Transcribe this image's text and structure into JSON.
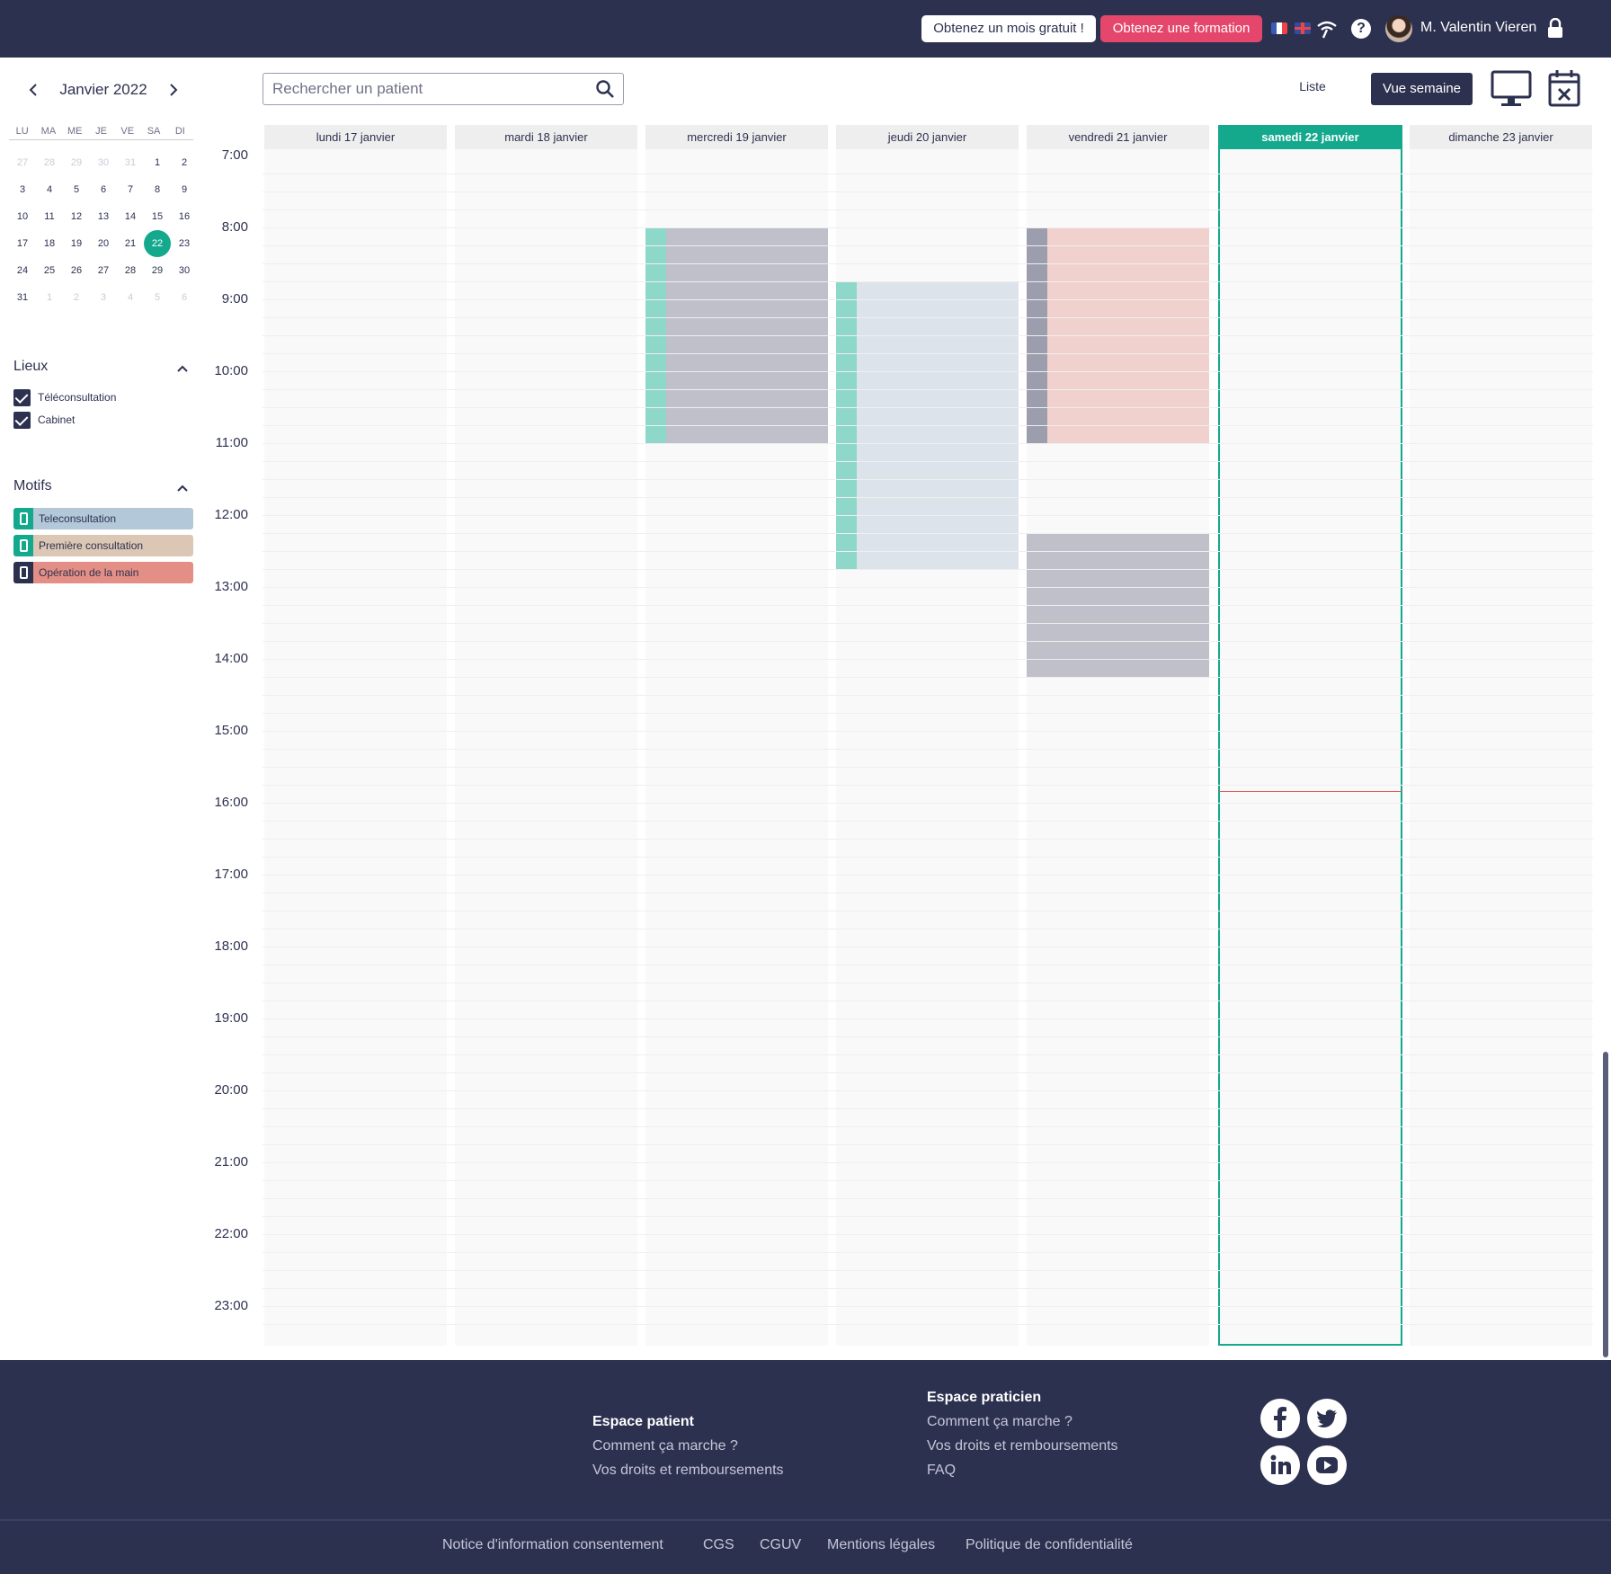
{
  "topbar": {
    "free_month_label": "Obtenez un mois gratuit !",
    "formation_label": "Obtenez une formation",
    "help_label": "?",
    "user_name": "M. Valentin Vieren",
    "colors": {
      "bar": "#2d3150",
      "formation": "#e5476c"
    }
  },
  "mini_calendar": {
    "month_label": "Janvier 2022",
    "weekdays": [
      "LU",
      "MA",
      "ME",
      "JE",
      "VE",
      "SA",
      "DI"
    ],
    "weeks": [
      [
        "27",
        "28",
        "29",
        "30",
        "31",
        "1",
        "2"
      ],
      [
        "3",
        "4",
        "5",
        "6",
        "7",
        "8",
        "9"
      ],
      [
        "10",
        "11",
        "12",
        "13",
        "14",
        "15",
        "16"
      ],
      [
        "17",
        "18",
        "19",
        "20",
        "21",
        "22",
        "23"
      ],
      [
        "24",
        "25",
        "26",
        "27",
        "28",
        "29",
        "30"
      ],
      [
        "31",
        "1",
        "2",
        "3",
        "4",
        "5",
        "6"
      ]
    ],
    "selected_day": "22"
  },
  "lieux": {
    "title": "Lieux",
    "items": [
      {
        "label": "Téléconsultation",
        "checked": true
      },
      {
        "label": "Cabinet",
        "checked": true
      }
    ]
  },
  "motifs": {
    "title": "Motifs",
    "items": [
      {
        "label": "Teleconsultation",
        "color": "#b3c8d8",
        "tag_color": "#14a98d"
      },
      {
        "label": "Première consultation",
        "color": "#dcc7b4",
        "tag_color": "#14a98d"
      },
      {
        "label": "Opération de la main",
        "color": "#e48f86",
        "tag_color": "#2d3150"
      }
    ]
  },
  "toolbar": {
    "search_placeholder": "Rechercher un patient",
    "liste_label": "Liste",
    "week_label": "Vue semaine"
  },
  "calendar": {
    "days": [
      {
        "label": "lundi 17 janvier",
        "today": false
      },
      {
        "label": "mardi 18 janvier",
        "today": false
      },
      {
        "label": "mercredi 19 janvier",
        "today": false
      },
      {
        "label": "jeudi 20 janvier",
        "today": false
      },
      {
        "label": "vendredi 21 janvier",
        "today": false
      },
      {
        "label": "samedi 22 janvier",
        "today": true
      },
      {
        "label": "dimanche 23 janvier",
        "today": false
      }
    ],
    "hours": [
      "7:00",
      "8:00",
      "9:00",
      "10:00",
      "11:00",
      "12:00",
      "13:00",
      "14:00",
      "15:00",
      "16:00",
      "17:00",
      "18:00",
      "19:00",
      "20:00",
      "21:00",
      "22:00",
      "23:00"
    ],
    "current_time": "16:00",
    "events": [
      {
        "day": 2,
        "start": "8:00",
        "end": "11:00",
        "color": "#c0c0ca",
        "tag_color": "#8ed8c9"
      },
      {
        "day": 3,
        "start": "8:45",
        "end": "12:45",
        "color": "#dde3ea",
        "tag_color": "#8ed8c9"
      },
      {
        "day": 4,
        "start": "8:00",
        "end": "11:00",
        "color": "#f0d1cd",
        "tag_color": "#9c9eae"
      },
      {
        "day": 4,
        "start": "12:15",
        "end": "14:15",
        "color": "#c0c0ca",
        "tag_color": null
      }
    ],
    "accent": "#14a98d"
  },
  "footer": {
    "patient": {
      "title": "Espace patient",
      "links": [
        "Comment ça marche ?",
        "Vos droits et remboursements"
      ]
    },
    "praticien": {
      "title": "Espace praticien",
      "links": [
        "Comment ça marche ?",
        "Vos droits et remboursements",
        "FAQ"
      ]
    },
    "social": [
      "facebook",
      "twitter",
      "linkedin",
      "youtube"
    ],
    "legal": [
      "Notice d'information consentement",
      "CGS",
      "CGUV",
      "Mentions légales",
      "Politique de confidentialité"
    ]
  }
}
